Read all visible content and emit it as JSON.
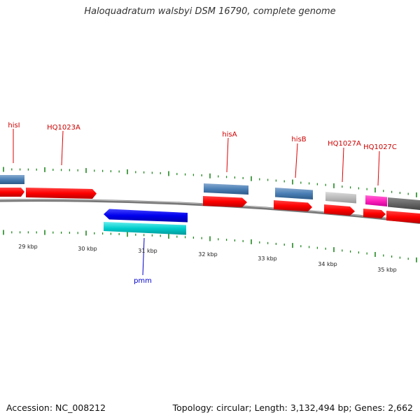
{
  "title": "Haloquadratum walsbyi DSM 16790, complete genome",
  "footer": {
    "accession": "Accession: NC_008212",
    "topology": "Topology: circular; Length: 3,132,494 bp; Genes: 2,662"
  },
  "kbp_labels": [
    "29 kbp",
    "30 kbp",
    "31 kbp",
    "32 kbp",
    "33 kbp",
    "34 kbp",
    "35 kbp"
  ],
  "gene_labels": [
    "hisI",
    "HQ1023A",
    "hisA",
    "hisB",
    "HQ1027A",
    "HQ1027C",
    "pmm"
  ],
  "colors": {
    "cds": "#ff0000",
    "gene_steelblue": "#4a7fb5",
    "gene_grey": "#bbbbbb",
    "gene_magenta": "#ff22bb",
    "gene_darkgrey": "#666666",
    "cds_reverse": "#0000ee",
    "gene_reverse": "#00cccc",
    "label_forward": "#cc0000",
    "label_reverse": "#0000cc",
    "tick": "#228822",
    "backbone": "#888888"
  }
}
